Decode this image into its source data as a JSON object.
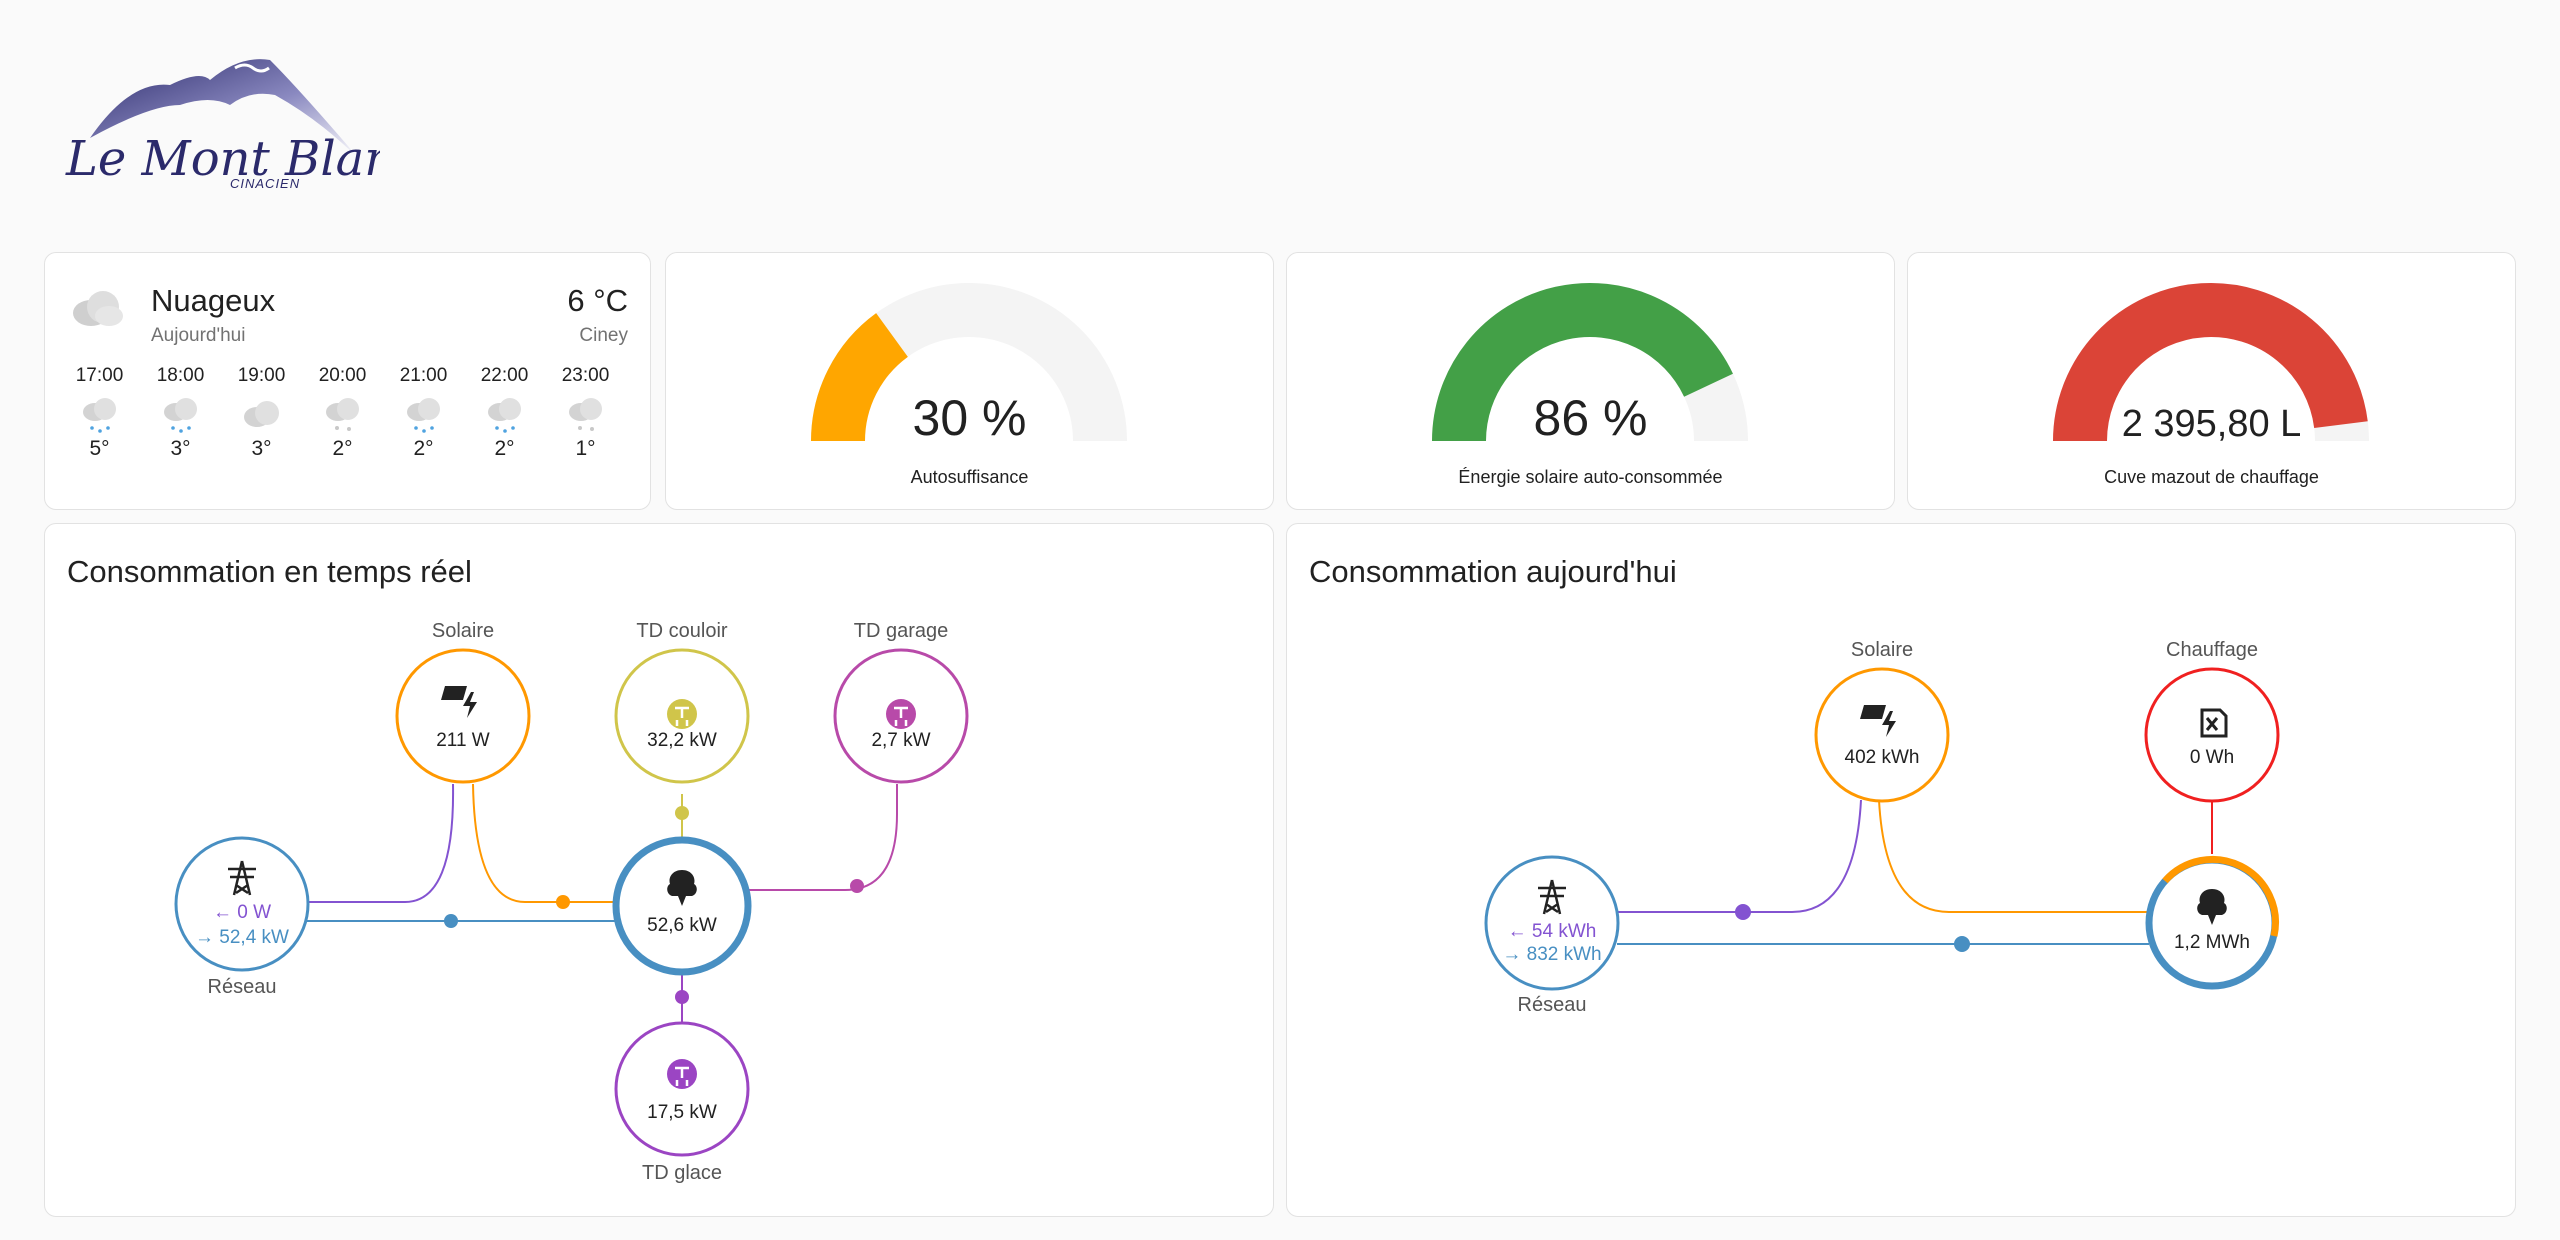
{
  "brand": {
    "name": "Le Mont Blanc",
    "sub": "CINACIEN"
  },
  "weather": {
    "condition": "Nuageux",
    "day": "Aujourd'hui",
    "temperature": "6 °C",
    "location": "Ciney",
    "icon": "cloudy-icon",
    "hours": [
      {
        "time": "17:00",
        "temp": "5°",
        "icon": "snowy-rainy-icon"
      },
      {
        "time": "18:00",
        "temp": "3°",
        "icon": "snowy-rainy-icon"
      },
      {
        "time": "19:00",
        "temp": "3°",
        "icon": "cloudy-icon"
      },
      {
        "time": "20:00",
        "temp": "2°",
        "icon": "snowy-icon"
      },
      {
        "time": "21:00",
        "temp": "2°",
        "icon": "snowy-rainy-icon"
      },
      {
        "time": "22:00",
        "temp": "2°",
        "icon": "snowy-rainy-icon"
      },
      {
        "time": "23:00",
        "temp": "1°",
        "icon": "snowy-icon"
      }
    ]
  },
  "gauges": [
    {
      "value": "30 %",
      "fraction": 0.3,
      "label": "Autosuffisance",
      "color": "#ffa600"
    },
    {
      "value": "86 %",
      "fraction": 0.86,
      "label": "Énergie solaire auto-consommée",
      "color": "#43a047"
    },
    {
      "value": "2 395,80 L",
      "fraction": 0.96,
      "label": "Cuve mazout de chauffage",
      "color": "#db4437"
    }
  ],
  "realtime": {
    "title": "Consommation en temps réel",
    "solar": {
      "label": "Solaire",
      "value": "211 W",
      "color": "#ff9800"
    },
    "td_couloir": {
      "label": "TD couloir",
      "value": "32,2 kW",
      "color": "#d0c54a"
    },
    "td_garage": {
      "label": "TD garage",
      "value": "2,7 kW",
      "color": "#b84aa9"
    },
    "grid": {
      "label": "Réseau",
      "export": "0 W",
      "import": "52,4 kW",
      "color": "#488fc2",
      "export_color": "#8353d1"
    },
    "home": {
      "value": "52,6 kW",
      "color": "#488fc2"
    },
    "td_glace": {
      "label": "TD glace",
      "value": "17,5 kW",
      "color": "#9b45c3"
    }
  },
  "today": {
    "title": "Consommation aujourd'hui",
    "solar": {
      "label": "Solaire",
      "value": "402 kWh",
      "color": "#ff9800"
    },
    "heating": {
      "label": "Chauffage",
      "value": "0 Wh",
      "color": "#f02020"
    },
    "grid": {
      "label": "Réseau",
      "export": "54 kWh",
      "import": "832 kWh",
      "color": "#488fc2",
      "export_color": "#8353d1"
    },
    "home": {
      "value": "1,2 MWh",
      "color": "#488fc2"
    }
  }
}
